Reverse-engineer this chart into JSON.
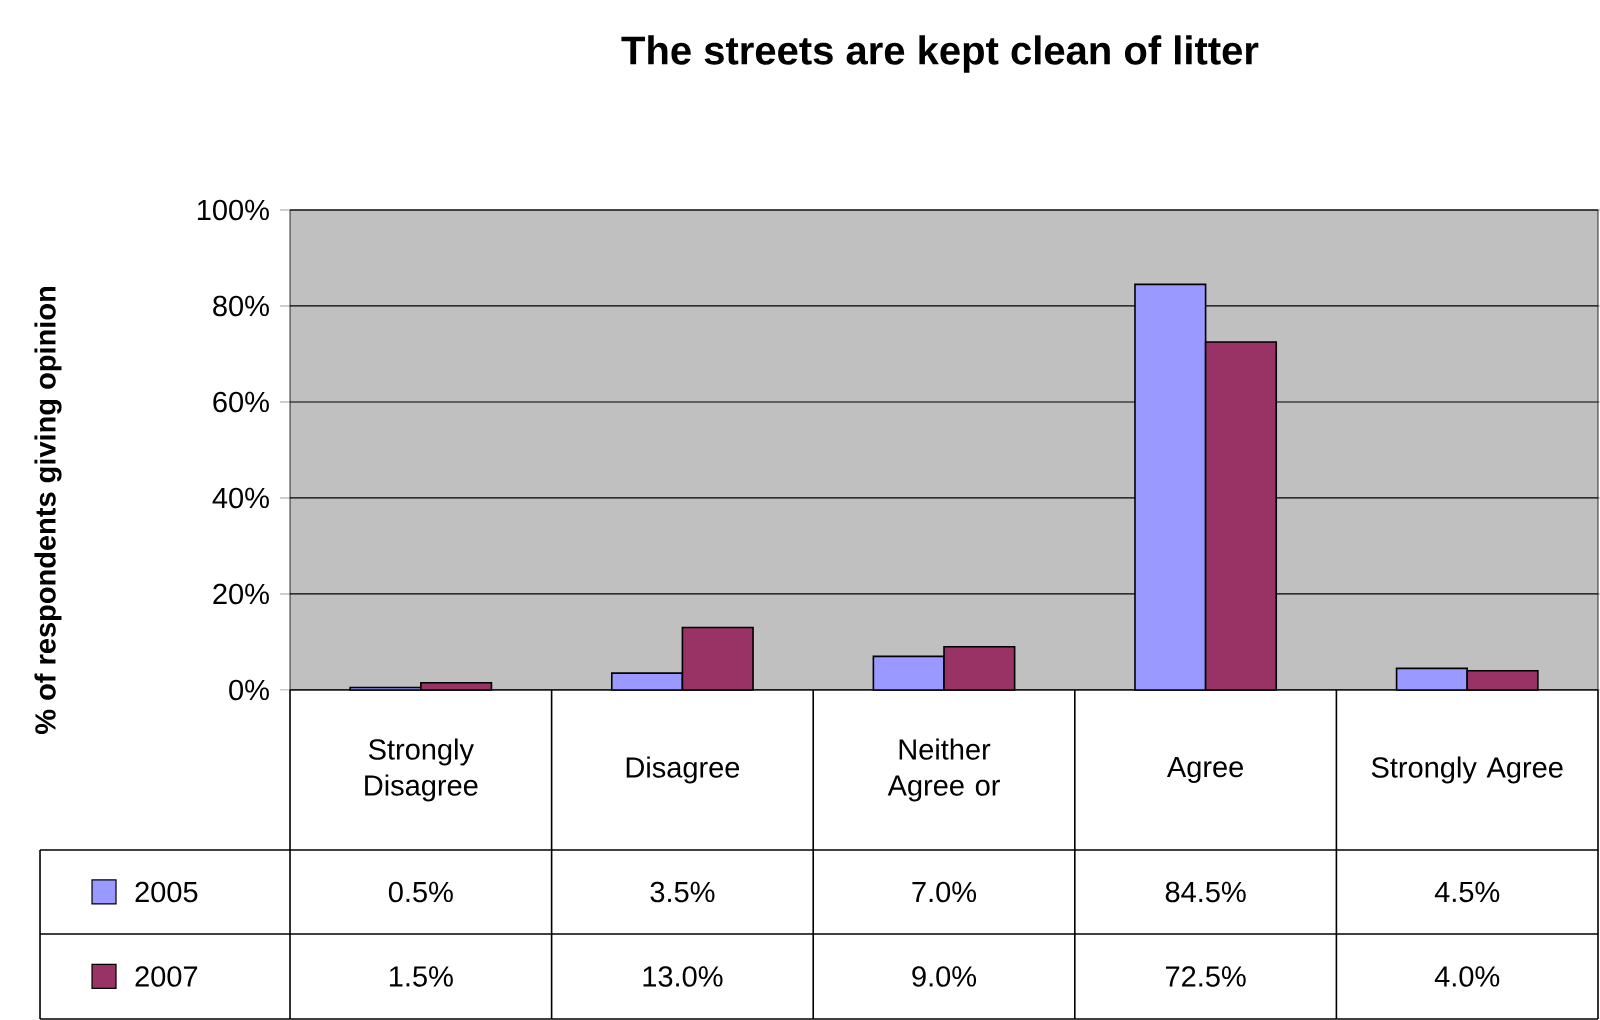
{
  "chart_data": {
    "type": "bar",
    "title": "The streets are kept clean of litter",
    "ylabel": "% of respondents giving opinion",
    "categories": [
      "Strongly Disagree",
      "Disagree",
      "Neither Agree or",
      "Agree",
      "Strongly Agree"
    ],
    "series": [
      {
        "name": "2005",
        "color": "#9999ff",
        "values": [
          0.5,
          3.5,
          7.0,
          84.5,
          4.5
        ],
        "value_labels": [
          "0.5%",
          "3.5%",
          "7.0%",
          "84.5%",
          "4.5%"
        ]
      },
      {
        "name": "2007",
        "color": "#993366",
        "values": [
          1.5,
          13.0,
          9.0,
          72.5,
          4.0
        ],
        "value_labels": [
          "1.5%",
          "13.0%",
          "9.0%",
          "72.5%",
          "4.0%"
        ]
      }
    ],
    "ylim": [
      0,
      100
    ],
    "yticks": [
      {
        "value": 0,
        "label": "0%"
      },
      {
        "value": 20,
        "label": "20%"
      },
      {
        "value": 40,
        "label": "40%"
      },
      {
        "value": 60,
        "label": "60%"
      },
      {
        "value": 80,
        "label": "80%"
      },
      {
        "value": 100,
        "label": "100%"
      }
    ],
    "grid": "y",
    "legend": "bottom"
  }
}
